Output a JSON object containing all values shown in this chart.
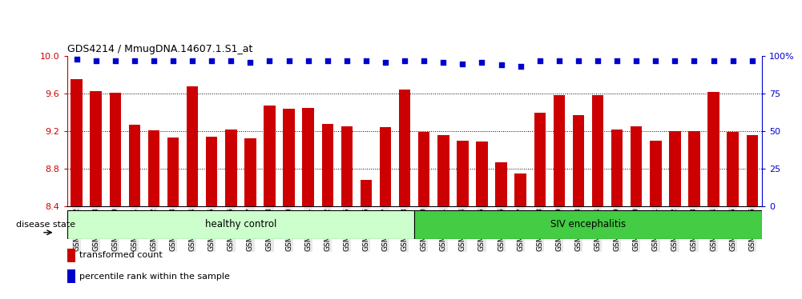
{
  "title": "GDS4214 / MmugDNA.14607.1.S1_at",
  "samples": [
    "GSM347802",
    "GSM347803",
    "GSM347810",
    "GSM347811",
    "GSM347812",
    "GSM347813",
    "GSM347814",
    "GSM347815",
    "GSM347816",
    "GSM347817",
    "GSM347818",
    "GSM347820",
    "GSM347821",
    "GSM347822",
    "GSM347825",
    "GSM347826",
    "GSM347827",
    "GSM347828",
    "GSM347800",
    "GSM347801",
    "GSM347804",
    "GSM347805",
    "GSM347806",
    "GSM347807",
    "GSM347808",
    "GSM347809",
    "GSM347823",
    "GSM347824",
    "GSM347829",
    "GSM347830",
    "GSM347831",
    "GSM347832",
    "GSM347833",
    "GSM347834",
    "GSM347835",
    "GSM347836"
  ],
  "bar_values": [
    9.75,
    9.63,
    9.61,
    9.27,
    9.21,
    9.13,
    9.68,
    9.14,
    9.22,
    9.12,
    9.47,
    9.44,
    9.45,
    9.28,
    9.25,
    8.68,
    9.24,
    9.64,
    9.19,
    9.16,
    9.1,
    9.09,
    8.87,
    8.75,
    9.4,
    9.58,
    9.37,
    9.58,
    9.22,
    9.25,
    9.1,
    9.2,
    9.2,
    9.62,
    9.19,
    9.16
  ],
  "percentile_values": [
    98,
    97,
    97,
    97,
    97,
    97,
    97,
    97,
    97,
    96,
    97,
    97,
    97,
    97,
    97,
    97,
    96,
    97,
    97,
    96,
    95,
    96,
    94,
    93,
    97,
    97,
    97,
    97,
    97,
    97,
    97,
    97,
    97,
    97,
    97,
    97
  ],
  "healthy_count": 18,
  "ylim_left": [
    8.4,
    10.0
  ],
  "ylim_right": [
    0,
    100
  ],
  "yticks_left": [
    8.4,
    8.8,
    9.2,
    9.6,
    10.0
  ],
  "yticks_right": [
    0,
    25,
    50,
    75,
    100
  ],
  "yticklabels_right": [
    "0",
    "25",
    "50",
    "75",
    "100%"
  ],
  "bar_color": "#cc0000",
  "dot_color": "#0000cc",
  "healthy_color": "#ccffcc",
  "siv_color": "#44cc44",
  "group_label_healthy": "healthy control",
  "group_label_siv": "SIV encephalitis",
  "legend_bar_label": "transformed count",
  "legend_dot_label": "percentile rank within the sample",
  "disease_state_label": "disease state",
  "bg_color": "#e8e8e8"
}
